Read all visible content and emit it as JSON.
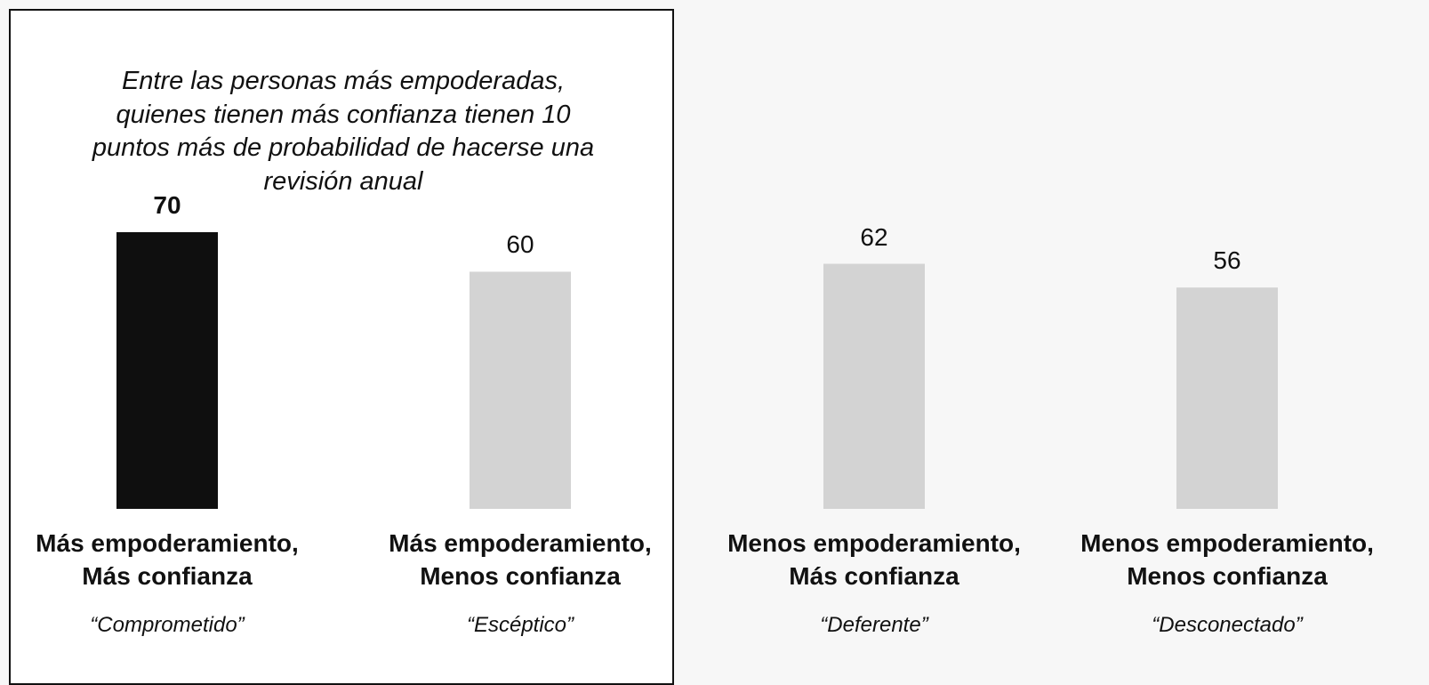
{
  "chart_data": {
    "type": "bar",
    "annotation": "Entre las personas más empoderadas,\nquienes tienen más confianza tienen 10\npuntos más de probabilidad de hacerse una\nrevisión anual",
    "categories": [
      "Más empoderamiento,\nMás confianza",
      "Más empoderamiento,\nMenos confianza",
      "Menos empoderamiento,\nMás confianza",
      "Menos empoderamiento,\nMenos confianza"
    ],
    "labels": [
      "“Comprometido”",
      "“Escéptico”",
      "“Deferente”",
      "“Desconectado”"
    ],
    "values": [
      70,
      60,
      62,
      56
    ],
    "colors": [
      "#0f0f0f",
      "#d3d3d3",
      "#d3d3d3",
      "#d3d3d3"
    ],
    "ylim": [
      0,
      70
    ]
  }
}
